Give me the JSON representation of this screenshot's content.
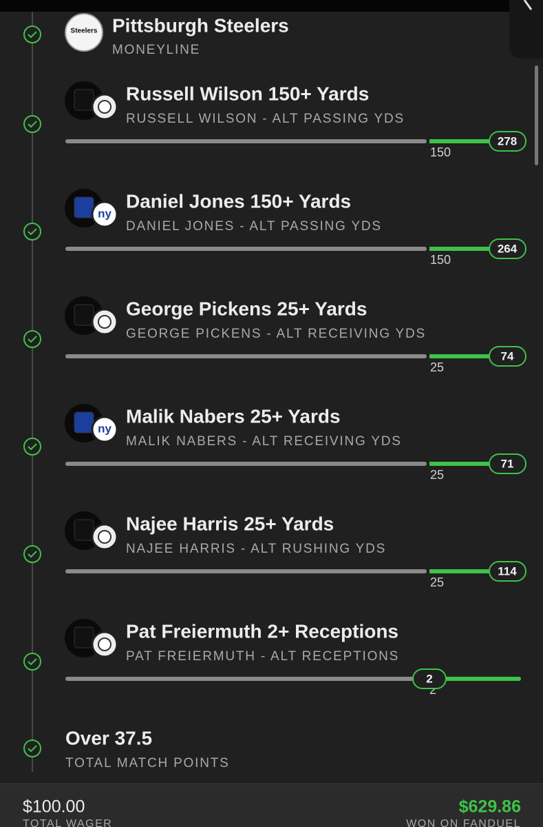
{
  "legs": [
    {
      "title": "Pittsburgh Steelers",
      "subtitle": "MONEYLINE",
      "logo": "Steelers"
    },
    {
      "title": "Russell Wilson 150+ Yards",
      "subtitle": "RUSSELL WILSON - ALT PASSING YDS",
      "target": "150",
      "result": "278"
    },
    {
      "title": "Daniel Jones 150+ Yards",
      "subtitle": "DANIEL JONES - ALT PASSING YDS",
      "target": "150",
      "result": "264",
      "logo": "ny"
    },
    {
      "title": "George Pickens 25+ Yards",
      "subtitle": "GEORGE PICKENS - ALT RECEIVING YDS",
      "target": "25",
      "result": "74"
    },
    {
      "title": "Malik Nabers 25+ Yards",
      "subtitle": "MALIK NABERS - ALT RECEIVING YDS",
      "target": "25",
      "result": "71",
      "logo": "ny"
    },
    {
      "title": "Najee Harris 25+ Yards",
      "subtitle": "NAJEE HARRIS - ALT RUSHING YDS",
      "target": "25",
      "result": "114"
    },
    {
      "title": "Pat Freiermuth 2+ Receptions",
      "subtitle": "PAT FREIERMUTH - ALT RECEPTIONS",
      "target": "2",
      "result": "2"
    },
    {
      "title": "Over 37.5",
      "subtitle": "TOTAL MATCH POINTS"
    }
  ],
  "footer": {
    "wager": "$100.00",
    "wager_label": "TOTAL WAGER",
    "won": "$629.86",
    "won_label": "WON ON FANDUEL"
  }
}
